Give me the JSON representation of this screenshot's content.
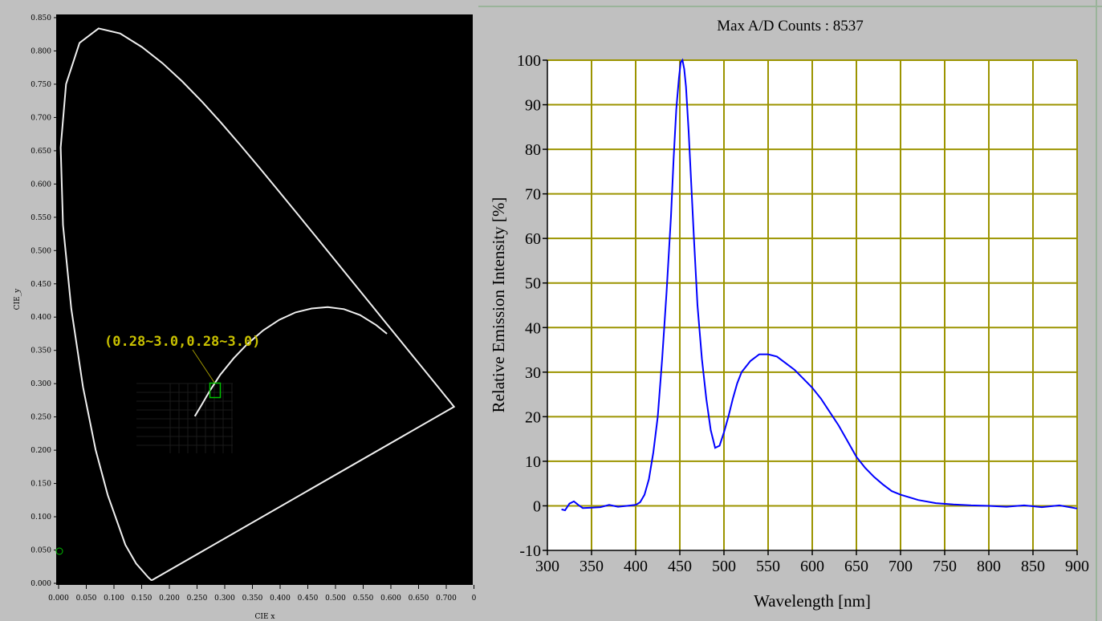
{
  "chart_data": [
    {
      "type": "scatter",
      "xlabel": "CIE x",
      "ylabel": "CIE_y",
      "xlim": [
        0.0,
        0.75
      ],
      "ylim": [
        0.0,
        0.85
      ],
      "x_ticks": [
        "0.000",
        "0.050",
        "0.100",
        "0.150",
        "0.200",
        "0.250",
        "0.300",
        "0.350",
        "0.400",
        "0.450",
        "0.500",
        "0.550",
        "0.600",
        "0.650",
        "0.700",
        "0"
      ],
      "y_ticks": [
        "0.000",
        "0.050",
        "0.100",
        "0.150",
        "0.200",
        "0.250",
        "0.300",
        "0.350",
        "0.400",
        "0.450",
        "0.500",
        "0.550",
        "0.600",
        "0.650",
        "0.700",
        "0.750",
        "0.800",
        "0.850"
      ],
      "marker": {
        "x": 0.29,
        "y": 0.29
      },
      "annotation": "(0.28~3.0,0.28~3.0)",
      "locus": [
        {
          "x": 0.1741,
          "y": 0.005
        },
        {
          "x": 0.1738,
          "y": 0.0049
        },
        {
          "x": 0.1721,
          "y": 0.0048
        },
        {
          "x": 0.1666,
          "y": 0.0089
        },
        {
          "x": 0.144,
          "y": 0.0297
        },
        {
          "x": 0.1241,
          "y": 0.0578
        },
        {
          "x": 0.0913,
          "y": 0.1327
        },
        {
          "x": 0.0687,
          "y": 0.2007
        },
        {
          "x": 0.0454,
          "y": 0.295
        },
        {
          "x": 0.0235,
          "y": 0.4127
        },
        {
          "x": 0.0082,
          "y": 0.5384
        },
        {
          "x": 0.0039,
          "y": 0.6548
        },
        {
          "x": 0.0139,
          "y": 0.7502
        },
        {
          "x": 0.0389,
          "y": 0.812
        },
        {
          "x": 0.0743,
          "y": 0.8338
        },
        {
          "x": 0.1142,
          "y": 0.8262
        },
        {
          "x": 0.1547,
          "y": 0.8059
        },
        {
          "x": 0.1929,
          "y": 0.7816
        },
        {
          "x": 0.2296,
          "y": 0.7543
        },
        {
          "x": 0.2658,
          "y": 0.7243
        },
        {
          "x": 0.3016,
          "y": 0.6923
        },
        {
          "x": 0.3373,
          "y": 0.6589
        },
        {
          "x": 0.3731,
          "y": 0.6245
        },
        {
          "x": 0.4087,
          "y": 0.5896
        },
        {
          "x": 0.4441,
          "y": 0.5547
        },
        {
          "x": 0.4788,
          "y": 0.5202
        },
        {
          "x": 0.5125,
          "y": 0.4866
        },
        {
          "x": 0.5448,
          "y": 0.4544
        },
        {
          "x": 0.5752,
          "y": 0.4242
        },
        {
          "x": 0.6029,
          "y": 0.3965
        },
        {
          "x": 0.627,
          "y": 0.3725
        },
        {
          "x": 0.6482,
          "y": 0.3514
        },
        {
          "x": 0.6658,
          "y": 0.334
        },
        {
          "x": 0.6801,
          "y": 0.3197
        },
        {
          "x": 0.6915,
          "y": 0.3083
        },
        {
          "x": 0.7006,
          "y": 0.2993
        },
        {
          "x": 0.7079,
          "y": 0.292
        },
        {
          "x": 0.714,
          "y": 0.2859
        },
        {
          "x": 0.719,
          "y": 0.2809
        },
        {
          "x": 0.723,
          "y": 0.277
        },
        {
          "x": 0.726,
          "y": 0.274
        },
        {
          "x": 0.7283,
          "y": 0.2717
        },
        {
          "x": 0.73,
          "y": 0.27
        },
        {
          "x": 0.7347,
          "y": 0.2653
        }
      ],
      "planckian": [
        {
          "x": 0.253,
          "y": 0.251
        },
        {
          "x": 0.265,
          "y": 0.267
        },
        {
          "x": 0.28,
          "y": 0.288
        },
        {
          "x": 0.3,
          "y": 0.313
        },
        {
          "x": 0.325,
          "y": 0.338
        },
        {
          "x": 0.35,
          "y": 0.359
        },
        {
          "x": 0.38,
          "y": 0.38
        },
        {
          "x": 0.41,
          "y": 0.396
        },
        {
          "x": 0.44,
          "y": 0.407
        },
        {
          "x": 0.47,
          "y": 0.413
        },
        {
          "x": 0.5,
          "y": 0.415
        },
        {
          "x": 0.53,
          "y": 0.412
        },
        {
          "x": 0.56,
          "y": 0.403
        },
        {
          "x": 0.59,
          "y": 0.388
        },
        {
          "x": 0.61,
          "y": 0.375
        }
      ],
      "colors": {
        "background": "#000000",
        "locus": "#f0f0f0",
        "marker": "#00c000",
        "annotation": "#c8c000"
      }
    },
    {
      "type": "line",
      "title": "Max A/D Counts : 8537",
      "xlabel": "Wavelength [nm]",
      "ylabel": "Relative Emission Intensity [%]",
      "xlim": [
        300,
        900
      ],
      "ylim": [
        -10,
        100
      ],
      "x_ticks": [
        300,
        350,
        400,
        450,
        500,
        550,
        600,
        650,
        700,
        750,
        800,
        850,
        900
      ],
      "y_ticks": [
        -10,
        0,
        10,
        20,
        30,
        40,
        50,
        60,
        70,
        80,
        90,
        100
      ],
      "grid": true,
      "colors": {
        "line": "#0000ff",
        "grid": "#9c9400",
        "plot_background": "#ffffff"
      },
      "series": [
        {
          "x": [
            316,
            320,
            325,
            330,
            335,
            340,
            350,
            360,
            370,
            380,
            390,
            400,
            405,
            410,
            415,
            420,
            425,
            430,
            435,
            440,
            443,
            446,
            449,
            451,
            453,
            455,
            457,
            460,
            463,
            466,
            470,
            475,
            480,
            485,
            490,
            495,
            500,
            505,
            510,
            515,
            520,
            530,
            540,
            550,
            560,
            570,
            580,
            590,
            600,
            610,
            620,
            630,
            640,
            650,
            660,
            670,
            680,
            690,
            700,
            720,
            740,
            760,
            780,
            800,
            820,
            840,
            860,
            880,
            900
          ],
          "values": [
            -0.8,
            -1.0,
            0.5,
            1.0,
            0.2,
            -0.5,
            -0.4,
            -0.3,
            0.2,
            -0.2,
            0.0,
            0.2,
            0.8,
            2.5,
            6.0,
            12.0,
            20.0,
            33.0,
            48.0,
            65.0,
            78.0,
            89.0,
            96.0,
            99.5,
            100.0,
            98.0,
            94.0,
            84.0,
            72.0,
            60.0,
            45.0,
            33.0,
            24.0,
            17.0,
            13.0,
            13.5,
            16.5,
            20.0,
            24.0,
            27.5,
            30.0,
            32.5,
            34.0,
            34.0,
            33.5,
            32.0,
            30.5,
            28.5,
            26.5,
            24.0,
            21.0,
            18.0,
            14.5,
            11.0,
            8.5,
            6.5,
            4.8,
            3.3,
            2.5,
            1.3,
            0.6,
            0.3,
            0.1,
            0.0,
            -0.2,
            0.1,
            -0.3,
            0.1,
            -0.6
          ]
        }
      ]
    }
  ]
}
